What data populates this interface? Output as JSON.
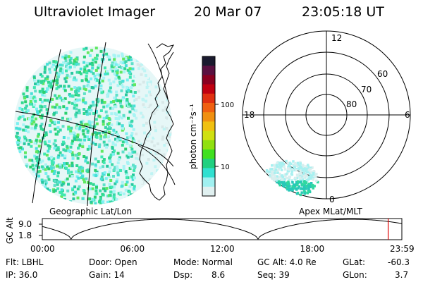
{
  "header": {
    "instrument": "Ultraviolet Imager",
    "date": "20 Mar 07",
    "time": "23:05:18 UT"
  },
  "colorbar": {
    "label": "photon cm⁻²s⁻¹",
    "ticks": [
      "100",
      "10"
    ],
    "colors": [
      "#1a1a2e",
      "#5a1040",
      "#8a0020",
      "#c00010",
      "#e03010",
      "#f06010",
      "#f09010",
      "#f0c010",
      "#d0e010",
      "#90e010",
      "#40e020",
      "#20d080",
      "#30e0d0",
      "#a0f0f0",
      "#e0f0f0"
    ]
  },
  "left_panel": {
    "caption": "Geographic Lat/Lon",
    "fill_colors": [
      "#30d890",
      "#40e8b0",
      "#2cd070",
      "#5ee0c8",
      "#3ad8a8",
      "#60e860",
      "#48e0d8",
      "#7af0f0",
      "#a8f4f4",
      "#28c8a0"
    ]
  },
  "right_panel": {
    "caption": "Apex MLat/MLT",
    "mlt_labels": {
      "top": "12",
      "left": "18",
      "right": "6",
      "bottom": "0"
    },
    "lat_labels": [
      "60",
      "70",
      "80"
    ]
  },
  "altitude_plot": {
    "ylabel": "GC Alt",
    "yticks": [
      "9.0",
      "1.8"
    ],
    "xticks": [
      "00:00",
      "06:00",
      "12:00",
      "18:00",
      "23:59"
    ],
    "marker_color": "#e00000",
    "marker_time_fraction": 0.962
  },
  "info": {
    "flt": "Flt: LBHL",
    "ip": "IP: 36.0",
    "door": "Door: Open",
    "gain": "Gain: 14",
    "mode": "Mode: Normal",
    "dsp_label": "Dsp:",
    "dsp_value": "8.6",
    "gcalt": "GC Alt: 4.0 Re",
    "seq": "Seq: 39",
    "glat_label": "GLat:",
    "glat_value": "-60.3",
    "glon_label": "GLon:",
    "glon_value": "3.7"
  }
}
